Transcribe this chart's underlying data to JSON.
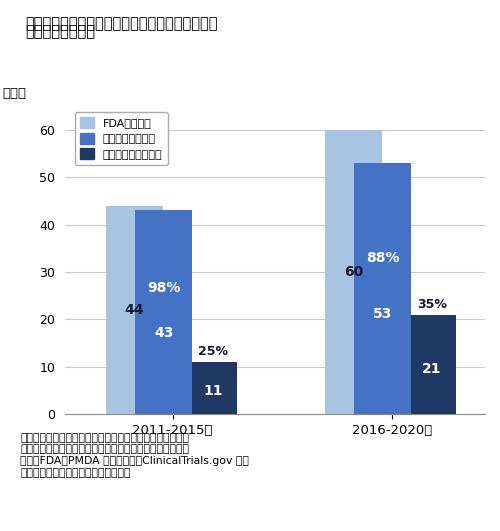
{
  "title_line1": "図４　抗悪性腫瘍剤のピボタル試験への日本地域",
  "title_line2": "　　　組入れ状況",
  "ylabel": "品目数",
  "categories": [
    "2011-2015年",
    "2016-2020年"
  ],
  "fda_values": [
    44,
    60
  ],
  "intl_values": [
    43,
    53
  ],
  "japan_values": [
    11,
    21
  ],
  "fda_labels": [
    "44",
    "60"
  ],
  "intl_pct": [
    "98%",
    "88%"
  ],
  "intl_num": [
    "43",
    "53"
  ],
  "japan_pct": [
    "25%",
    "35%"
  ],
  "japan_num": [
    "11",
    "21"
  ],
  "ylim": [
    0,
    65
  ],
  "yticks": [
    0,
    10,
    20,
    30,
    40,
    50,
    60
  ],
  "note_line1": "注：２か国以上を組入れている試験を国際共同臨床試験と",
  "note_line2": "　　した。複数の試験がある場合は後期臨床相を集計した",
  "note_line3": "出所：FDA、PMDA の公開情報、ClinicalTrials.gov をも",
  "note_line4": "　　とに医薬産業政策研究所にて作成",
  "background_color": "#ffffff",
  "grid_color": "#cccccc",
  "fda_color": "#a8c4e0",
  "intl_color": "#4472c4",
  "japan_color": "#1f3864",
  "legend_fda": "FDA承認品目",
  "legend_intl": "国際共同治験品目",
  "legend_japan": "日本地域組入れ品目"
}
